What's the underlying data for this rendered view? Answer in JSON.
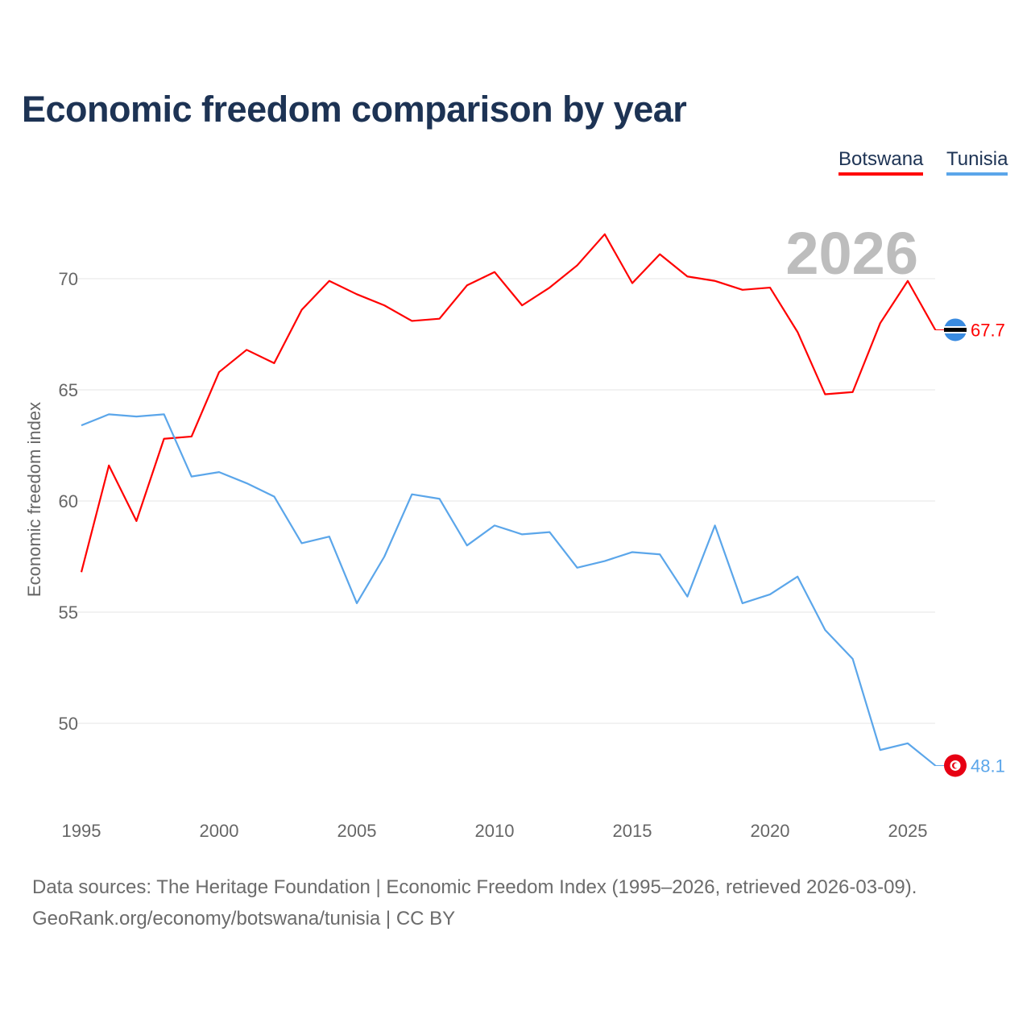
{
  "title": "Economic freedom comparison by year",
  "footer": {
    "line1": "Data sources: The Heritage Foundation | Economic Freedom Index (1995–2026, retrieved 2026-03-09).",
    "line2": "GeoRank.org/economy/botswana/tunisia | CC BY"
  },
  "chart_data": {
    "type": "line",
    "title": "Economic freedom comparison by year",
    "xlabel": "",
    "ylabel": "Economic freedom index",
    "year_label": "2026",
    "x": [
      1995,
      1996,
      1997,
      1998,
      1999,
      2000,
      2001,
      2002,
      2003,
      2004,
      2005,
      2006,
      2007,
      2008,
      2009,
      2010,
      2011,
      2012,
      2013,
      2014,
      2015,
      2016,
      2017,
      2018,
      2019,
      2020,
      2021,
      2022,
      2023,
      2024,
      2025,
      2026
    ],
    "xticks": [
      1995,
      2000,
      2005,
      2010,
      2015,
      2020,
      2025
    ],
    "yticks": [
      50,
      55,
      60,
      65,
      70
    ],
    "xlim": [
      1995,
      2026
    ],
    "grid": true,
    "legend_position": "top-right",
    "series": [
      {
        "name": "Botswana",
        "color": "#ff0000",
        "end_label": "67.7",
        "values": [
          56.8,
          61.6,
          59.1,
          62.8,
          62.9,
          65.8,
          66.8,
          66.2,
          68.6,
          69.9,
          69.3,
          68.8,
          68.1,
          68.2,
          69.7,
          70.3,
          68.8,
          69.6,
          70.6,
          72.0,
          69.8,
          71.1,
          70.1,
          69.9,
          69.5,
          69.6,
          67.6,
          64.8,
          64.9,
          68.0,
          69.9,
          67.7
        ]
      },
      {
        "name": "Tunisia",
        "color": "#5ba6ea",
        "end_label": "48.1",
        "values": [
          63.4,
          63.9,
          63.8,
          63.9,
          61.1,
          61.3,
          60.8,
          60.2,
          58.1,
          58.4,
          55.4,
          57.5,
          60.3,
          60.1,
          58.0,
          58.9,
          58.5,
          58.6,
          57.0,
          57.3,
          57.7,
          57.6,
          55.7,
          58.9,
          55.4,
          55.8,
          56.6,
          54.2,
          52.9,
          48.8,
          49.1,
          48.1
        ]
      }
    ]
  }
}
